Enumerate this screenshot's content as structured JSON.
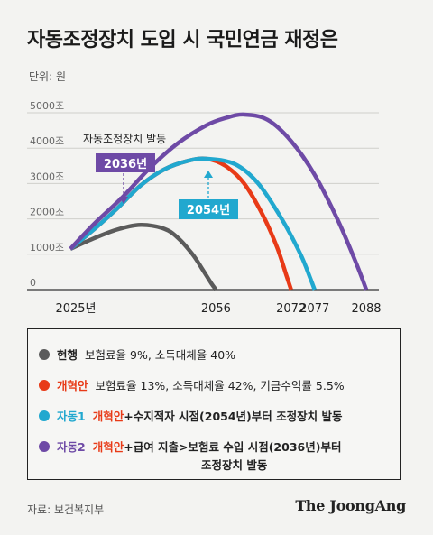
{
  "title": "자동조정장치 도입 시 국민연금 재정은",
  "unit": "단위: 원",
  "source": "자료: 보건복지부",
  "logo": "The JoongAng",
  "annotations": {
    "trigger_text": "자동조정장치 발동",
    "badge_2036": "2036년",
    "badge_2054": "2054년"
  },
  "legend": {
    "items": [
      {
        "name": "현행",
        "color": "#5b5b5b",
        "text": "보험료율 9%, 소득대체율 40%"
      },
      {
        "name": "개혁안",
        "color": "#e83a17",
        "text": "보험료율 13%, 소득대체율 42%, 기금수익률 5.5%"
      },
      {
        "name": "자동1",
        "color": "#21a8cf",
        "ref": "개혁안",
        "text": "+수지적자 시점(2054년)부터 조정장치 발동"
      },
      {
        "name": "자동2",
        "color": "#6e4aa6",
        "ref": "개혁안",
        "text": "+급여 지출>보험료 수입 시점(2036년)부터",
        "text2": "조정장치 발동"
      }
    ]
  },
  "chart_data": {
    "type": "line",
    "title": "자동조정장치 도입 시 국민연금 재정은",
    "unit": "단위: 원",
    "y_tick_labels": [
      "0",
      "1000조",
      "2000조",
      "3000조",
      "4000조",
      "5000조"
    ],
    "y_ticks": [
      0,
      1000,
      2000,
      3000,
      4000,
      5000
    ],
    "ylim": [
      0,
      5200
    ],
    "x_tick_labels": [
      "2025년",
      "2056",
      "2072",
      "2077",
      "2088"
    ],
    "x_ticks": [
      2025,
      2056,
      2072,
      2077,
      2088
    ],
    "xlim": [
      2025,
      2088
    ],
    "series": [
      {
        "name": "현행",
        "color": "#5b5b5b",
        "x": [
          2025,
          2030,
          2035,
          2040,
          2045,
          2048,
          2051,
          2053,
          2055,
          2056
        ],
        "y": [
          1150,
          1450,
          1700,
          1830,
          1720,
          1450,
          1000,
          600,
          180,
          0
        ]
      },
      {
        "name": "개혁안",
        "color": "#e83a17",
        "x": [
          2025,
          2030,
          2035,
          2040,
          2045,
          2050,
          2054,
          2058,
          2062,
          2066,
          2069,
          2071,
          2072
        ],
        "y": [
          1150,
          1700,
          2300,
          2950,
          3400,
          3640,
          3700,
          3500,
          3000,
          2100,
          1200,
          400,
          0
        ]
      },
      {
        "name": "자동1",
        "color": "#21a8cf",
        "x": [
          2025,
          2030,
          2035,
          2040,
          2045,
          2050,
          2054,
          2060,
          2065,
          2070,
          2074,
          2076,
          2077
        ],
        "y": [
          1150,
          1700,
          2300,
          2950,
          3400,
          3640,
          3700,
          3550,
          3000,
          2000,
          1000,
          350,
          0
        ]
      },
      {
        "name": "자동2",
        "color": "#6e4aa6",
        "x": [
          2025,
          2030,
          2036,
          2042,
          2048,
          2054,
          2058,
          2062,
          2067,
          2072,
          2077,
          2082,
          2086,
          2088
        ],
        "y": [
          1150,
          1850,
          2600,
          3450,
          4150,
          4650,
          4850,
          4950,
          4800,
          4200,
          3250,
          1950,
          700,
          0
        ]
      }
    ]
  }
}
